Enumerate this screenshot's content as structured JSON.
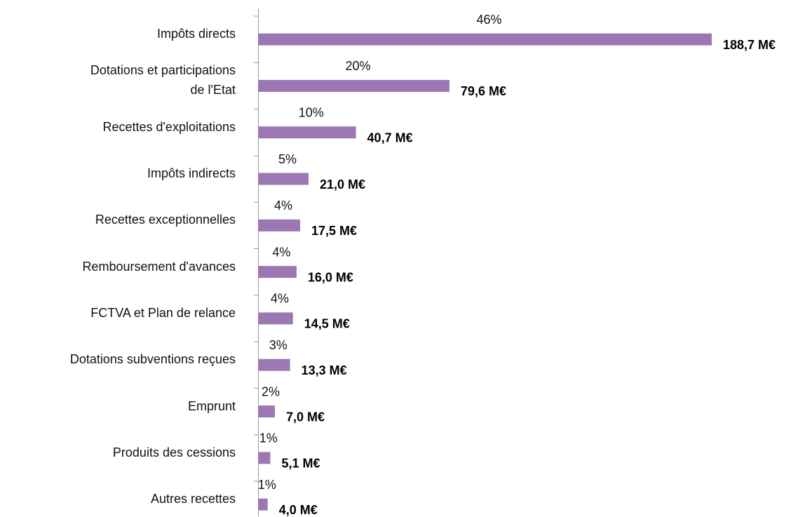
{
  "chart_data": {
    "type": "barh",
    "categories": [
      "Impôts directs",
      "Dotations et participations\nde l'Etat",
      "Recettes d'exploitations",
      "Impôts indirects",
      "Recettes exceptionnelles",
      "Remboursement d'avances",
      "FCTVA et Plan de relance",
      "Dotations subventions  reçues",
      "Emprunt",
      "Produits des cessions",
      "Autres recettes"
    ],
    "values": [
      188.7,
      79.6,
      40.7,
      21.0,
      17.5,
      16.0,
      14.5,
      13.3,
      7.0,
      5.1,
      4.0
    ],
    "value_labels": [
      "188,7 M€",
      "79,6 M€",
      "40,7 M€",
      "21,0 M€",
      "17,5 M€",
      "16,0 M€",
      "14,5 M€",
      "13,3 M€",
      "7,0 M€",
      "5,1 M€",
      "4,0 M€"
    ],
    "shares": [
      46,
      20,
      10,
      5,
      4,
      4,
      4,
      3,
      2,
      1,
      1
    ],
    "share_labels": [
      "46%",
      "20%",
      "10%",
      "5%",
      "4%",
      "4%",
      "4%",
      "3%",
      "2%",
      "1%",
      "1%"
    ],
    "color": "#9b78b3",
    "xlim": [
      0,
      190
    ]
  }
}
